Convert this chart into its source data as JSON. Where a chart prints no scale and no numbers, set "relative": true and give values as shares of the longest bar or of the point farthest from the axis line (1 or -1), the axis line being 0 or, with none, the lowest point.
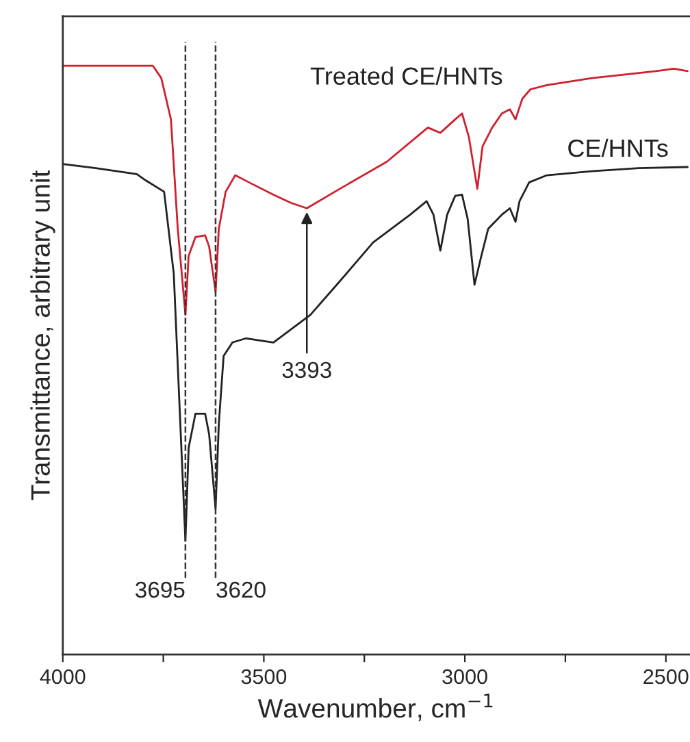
{
  "chart_data": {
    "type": "line",
    "relative": true,
    "xlabel": "Wavenumber, cm$^{−1}$",
    "ylabel": "Transmittance, arbitrary unit",
    "xlim": [
      4000,
      2440
    ],
    "xticks": [
      4000,
      {
        "value": 3750,
        "label": null
      },
      3500,
      {
        "value": 3250,
        "label": null
      },
      3000,
      {
        "value": 2750,
        "label": null
      },
      2500
    ],
    "grid": false,
    "legend": false,
    "marker": "none",
    "line_style": "solid",
    "series": [
      {
        "name": "Treated CE/HNTs",
        "color": "#d0202e",
        "x": [
          4000,
          3776,
          3755,
          3731,
          3714,
          3695,
          3687,
          3670,
          3646,
          3636,
          3620,
          3612,
          3595,
          3571,
          3537,
          3476,
          3432,
          3393,
          3306,
          3194,
          3092,
          3061,
          3024,
          3007,
          2990,
          2969,
          2956,
          2932,
          2908,
          2888,
          2874,
          2857,
          2837,
          2796,
          2684,
          2524,
          2480,
          2446
        ],
        "values": [
          1.0,
          1.0,
          0.979,
          0.909,
          0.723,
          0.577,
          0.677,
          0.709,
          0.712,
          0.693,
          0.616,
          0.723,
          0.786,
          0.814,
          0.802,
          0.781,
          0.767,
          0.758,
          0.793,
          0.837,
          0.895,
          0.886,
          0.909,
          0.919,
          0.879,
          0.791,
          0.863,
          0.895,
          0.919,
          0.926,
          0.909,
          0.944,
          0.96,
          0.967,
          0.979,
          0.991,
          0.995,
          0.991
        ]
      },
      {
        "name": "CE/HNTs",
        "color": "#222222",
        "x": [
          4000,
          3918,
          3816,
          3793,
          3748,
          3724,
          3695,
          3687,
          3670,
          3646,
          3636,
          3620,
          3612,
          3600,
          3578,
          3544,
          3476,
          3384,
          3316,
          3228,
          3136,
          3095,
          3078,
          3061,
          3044,
          3024,
          3007,
          2993,
          2976,
          2959,
          2942,
          2908,
          2888,
          2874,
          2864,
          2840,
          2796,
          2684,
          2568,
          2446
        ],
        "values": [
          0.833,
          0.826,
          0.816,
          0.805,
          0.786,
          0.647,
          0.193,
          0.351,
          0.409,
          0.409,
          0.374,
          0.247,
          0.391,
          0.507,
          0.53,
          0.537,
          0.53,
          0.577,
          0.63,
          0.7,
          0.747,
          0.77,
          0.747,
          0.686,
          0.747,
          0.779,
          0.781,
          0.74,
          0.628,
          0.677,
          0.723,
          0.747,
          0.758,
          0.735,
          0.77,
          0.802,
          0.814,
          0.821,
          0.826,
          0.828
        ]
      }
    ],
    "ref_lines": [
      {
        "axis": "x",
        "value": 3695,
        "label": "3695",
        "line_style": "dashed",
        "color": "#333333"
      },
      {
        "axis": "x",
        "value": 3620,
        "label": "3620",
        "line_style": "dashed",
        "color": "#333333"
      }
    ],
    "annotations": [
      {
        "text": "3393",
        "x": 3393,
        "y": 0.758
      }
    ]
  }
}
